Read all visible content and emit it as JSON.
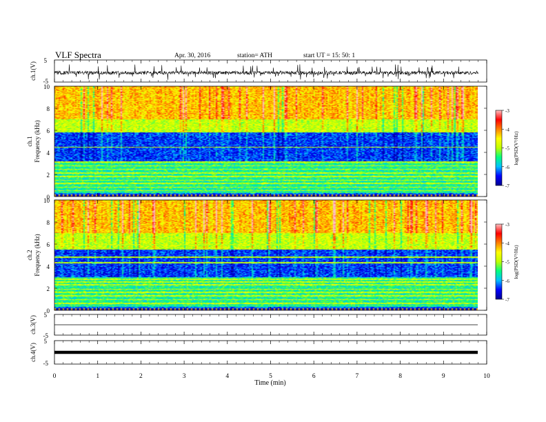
{
  "header": {
    "title": "VLF  Spectra",
    "date": "Apr. 30, 2016",
    "station": "station= ATH",
    "start": "start  UT  =    15: 50: 1"
  },
  "chart_data": [
    {
      "type": "line",
      "panel": "ch1-waveform",
      "ylabel": "ch.1(V)",
      "ylim": [
        -5,
        5
      ],
      "yticks": [
        "5",
        "-5"
      ],
      "x_range_min": [
        0,
        9.8
      ],
      "baseline_v": -0.8,
      "spike_amplitude_v": [
        -4,
        3
      ],
      "color": "#000000"
    },
    {
      "type": "heatmap",
      "panel": "ch1-spectrogram",
      "ylabel": "ch.1\nFrequency  (kHz)",
      "ylim_khz": [
        0,
        10
      ],
      "yticks": [
        "10",
        "8",
        "6",
        "4",
        "2",
        "0"
      ],
      "x_range_min": [
        0,
        9.8
      ],
      "bands_khz": [
        {
          "from": 0,
          "to": 0.25,
          "level": "dark / noise lines"
        },
        {
          "from": 0.25,
          "to": 3.2,
          "level": "-6 to -5 (blue/cyan with horizontal lines)"
        },
        {
          "from": 3.2,
          "to": 5.8,
          "level": "-7 to -6 (dark blue)"
        },
        {
          "from": 5.8,
          "to": 7.0,
          "level": "-5 (green/cyan)"
        },
        {
          "from": 7.0,
          "to": 10.0,
          "level": "-4.5 to -3.5 (yellow/orange/red bursts)"
        }
      ],
      "colorbar": {
        "label": "log(PSD(V²/Hz)",
        "ticks": [
          "-3",
          "-4",
          "-5",
          "-6",
          "-7"
        ],
        "range": [
          -7,
          -3
        ],
        "colors": [
          "#000090",
          "#0000ff",
          "#00bfff",
          "#00ff80",
          "#c0ff00",
          "#ffff00",
          "#ff8000",
          "#ff0000",
          "#ffc0c0"
        ]
      }
    },
    {
      "type": "heatmap",
      "panel": "ch2-spectrogram",
      "ylabel": "ch.2\nFrequency  (kHz)",
      "ylim_khz": [
        0,
        10
      ],
      "yticks": [
        "10",
        "8",
        "6",
        "4",
        "2",
        "0"
      ],
      "x_range_min": [
        0,
        9.8
      ],
      "bands_khz": [
        {
          "from": 0,
          "to": 0.3,
          "level": "dark / noise lines"
        },
        {
          "from": 0.3,
          "to": 3.0,
          "level": "-6 to -5 (blue/cyan, yellow lines)"
        },
        {
          "from": 3.0,
          "to": 5.5,
          "level": "-7 to -6 (dark blue bands)"
        },
        {
          "from": 5.5,
          "to": 7.0,
          "level": "-5 (cyan/green)"
        },
        {
          "from": 7.0,
          "to": 10.0,
          "level": "-4.5 to -3.5 (yellow/orange/red bursts)"
        }
      ],
      "colorbar": {
        "label": "log(PSD(V²/Hz)",
        "ticks": [
          "-3",
          "-4",
          "-5",
          "-6",
          "-7"
        ],
        "range": [
          -7,
          -3
        ]
      }
    },
    {
      "type": "line",
      "panel": "ch3-waveform",
      "ylabel": "ch.3(V)",
      "ylim": [
        -5,
        5
      ],
      "yticks": [
        "5",
        "-5"
      ],
      "x_range_min": [
        0,
        9.8
      ],
      "baseline_v": 0,
      "color": "#000000"
    },
    {
      "type": "line",
      "panel": "ch4-waveform",
      "ylabel": "ch.4(V)",
      "ylim": [
        -5,
        5
      ],
      "yticks": [
        "5",
        "-5"
      ],
      "x_range_min": [
        0,
        9.8
      ],
      "baseline_v": 0,
      "thick": true,
      "color": "#000000"
    }
  ],
  "xaxis": {
    "label": "Time  (min)",
    "range": [
      0,
      10
    ],
    "ticks": [
      "0",
      "1",
      "2",
      "3",
      "4",
      "5",
      "6",
      "7",
      "8",
      "9",
      "10"
    ]
  }
}
